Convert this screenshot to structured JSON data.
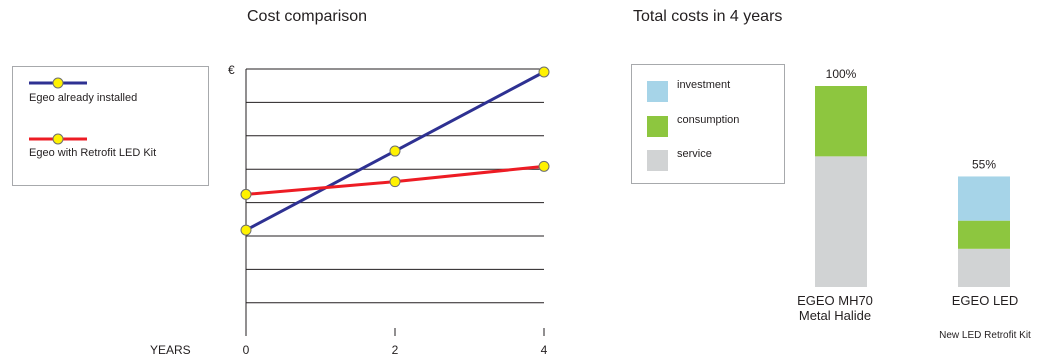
{
  "colors": {
    "series_installed": "#2e3192",
    "series_retrofit": "#ed1c24",
    "marker_fill": "#fff200",
    "marker_stroke": "#6d6e71",
    "investment": "#a6d4e8",
    "consumption": "#8dc63f",
    "service": "#d1d3d4",
    "grid": "#231f20"
  },
  "chart_data": [
    {
      "type": "line",
      "title": "Cost comparison",
      "xlabel": "YEARS",
      "ylabel": "€",
      "x": [
        0,
        2,
        4
      ],
      "xlim": [
        0,
        4
      ],
      "ylim": [
        0,
        8
      ],
      "grid": true,
      "legend_position": "left",
      "series": [
        {
          "name": "Egeo already installed",
          "values": [
            1.8,
            4.9,
            8.0
          ]
        },
        {
          "name": "Egeo with Retrofit LED Kit",
          "values": [
            3.2,
            3.7,
            4.3
          ]
        }
      ]
    },
    {
      "type": "bar",
      "stacked": true,
      "title": "Total costs in 4 years",
      "categories": [
        {
          "line1": "EGEO MH70",
          "line2": "Metal Halide",
          "sublabel": ""
        },
        {
          "line1": "EGEO LED",
          "line2": "",
          "sublabel": "New LED Retrofit Kit"
        }
      ],
      "total_labels": [
        "100%",
        "55%"
      ],
      "ylim": [
        0,
        100
      ],
      "legend_position": "left",
      "series": [
        {
          "name": "service",
          "values": [
            65,
            19
          ]
        },
        {
          "name": "consumption",
          "values": [
            35,
            14
          ]
        },
        {
          "name": "investment",
          "values": [
            0,
            22
          ]
        }
      ]
    }
  ]
}
